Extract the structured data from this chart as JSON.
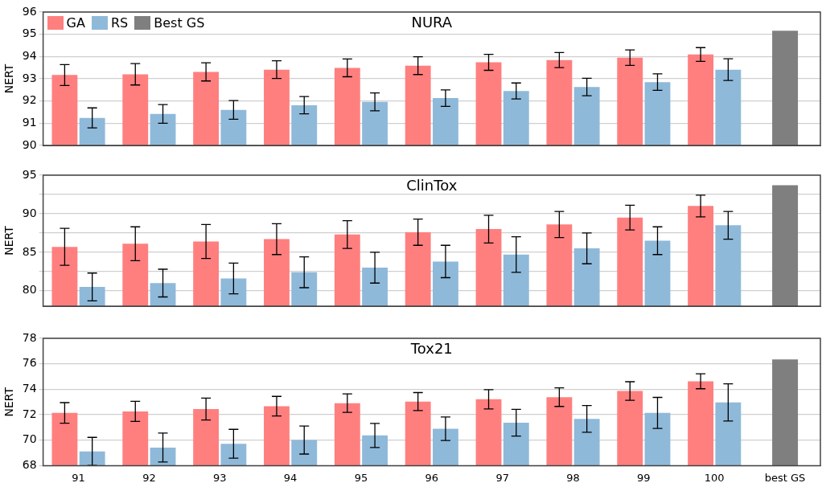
{
  "chart_data": [
    {
      "type": "bar",
      "title": "NURA",
      "ylabel": "NERT",
      "categories": [
        null,
        null,
        null,
        null,
        null,
        null,
        null,
        null,
        null,
        null,
        null
      ],
      "series": [
        {
          "name": "GA",
          "color": "#ff7f7f",
          "values": [
            93.17,
            93.2,
            93.31,
            93.41,
            93.49,
            93.59,
            93.74,
            93.84,
            93.95,
            94.09,
            null
          ],
          "errors": [
            0.47,
            0.48,
            0.41,
            0.4,
            0.4,
            0.4,
            0.36,
            0.34,
            0.35,
            0.31,
            null
          ]
        },
        {
          "name": "RS",
          "color": "#8fb9d9",
          "values": [
            91.24,
            91.42,
            91.6,
            91.81,
            91.96,
            92.13,
            92.45,
            92.63,
            92.85,
            93.41,
            null
          ],
          "errors": [
            0.45,
            0.42,
            0.42,
            0.39,
            0.4,
            0.37,
            0.36,
            0.39,
            0.37,
            0.49,
            null
          ]
        },
        {
          "name": "Best GS",
          "color": "#7f7f7f",
          "values": [
            null,
            null,
            null,
            null,
            null,
            null,
            null,
            null,
            null,
            null,
            95.16
          ]
        }
      ],
      "ylim": [
        90,
        96
      ],
      "yticks": [
        90,
        91,
        92,
        93,
        94,
        95,
        96
      ],
      "grid": "y",
      "legend": "top left",
      "tick_labels": "y"
    },
    {
      "type": "bar",
      "title": "ClinTox",
      "ylabel": "NERT",
      "categories": [
        null,
        null,
        null,
        null,
        null,
        null,
        null,
        null,
        null,
        null,
        null
      ],
      "series": [
        {
          "color": "#ff7f7f",
          "values": [
            85.7,
            86.1,
            86.4,
            86.7,
            87.3,
            87.6,
            88.0,
            88.6,
            89.5,
            91.0,
            null
          ],
          "errors": [
            2.4,
            2.2,
            2.2,
            2.0,
            1.8,
            1.7,
            1.8,
            1.7,
            1.6,
            1.4,
            null
          ]
        },
        {
          "color": "#8fb9d9",
          "values": [
            80.5,
            81.0,
            81.6,
            82.4,
            83.0,
            83.8,
            84.7,
            85.5,
            86.5,
            88.5,
            null
          ],
          "errors": [
            1.8,
            1.8,
            2.0,
            2.0,
            2.0,
            2.1,
            2.3,
            2.0,
            1.8,
            1.8,
            null
          ]
        },
        {
          "color": "#7f7f7f",
          "values": [
            null,
            null,
            null,
            null,
            null,
            null,
            null,
            null,
            null,
            null,
            93.7
          ]
        }
      ],
      "ylim": [
        78,
        95
      ],
      "yticks": [
        80,
        {
          "value": 82.5,
          "label": null
        },
        85,
        {
          "value": 87.5,
          "label": null
        },
        90,
        {
          "value": 92.5,
          "label": null
        },
        95
      ],
      "grid": "y",
      "tick_labels": "y"
    },
    {
      "type": "bar",
      "title": "Tox21",
      "ylabel": "NERT",
      "categories": [
        "91",
        "92",
        "93",
        "94",
        "95",
        "96",
        "97",
        "98",
        "99",
        "100",
        "best GS"
      ],
      "series": [
        {
          "color": "#ff7f7f",
          "values": [
            72.14,
            72.26,
            72.44,
            72.67,
            72.91,
            73.03,
            73.21,
            73.38,
            73.86,
            74.63,
            null
          ],
          "errors": [
            0.81,
            0.79,
            0.86,
            0.77,
            0.72,
            0.71,
            0.76,
            0.73,
            0.73,
            0.59,
            null
          ]
        },
        {
          "color": "#8fb9d9",
          "values": [
            69.12,
            69.42,
            69.72,
            70.01,
            70.37,
            70.9,
            71.37,
            71.67,
            72.14,
            72.97,
            null
          ],
          "errors": [
            1.1,
            1.14,
            1.13,
            1.1,
            0.95,
            0.92,
            1.05,
            1.05,
            1.22,
            1.46,
            null
          ]
        },
        {
          "color": "#7f7f7f",
          "values": [
            null,
            null,
            null,
            null,
            null,
            null,
            null,
            null,
            null,
            null,
            76.34
          ]
        }
      ],
      "ylim": [
        68,
        78
      ],
      "yticks": [
        68,
        70,
        72,
        74,
        76,
        78
      ],
      "grid": "y"
    }
  ]
}
